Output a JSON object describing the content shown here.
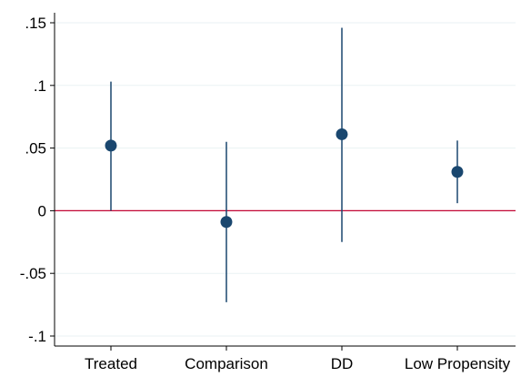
{
  "chart_data": {
    "type": "scatter",
    "subtype": "coefficient-plot-with-confidence-intervals",
    "title": "",
    "xlabel": "",
    "ylabel": "",
    "categories": [
      "Treated",
      "Comparison",
      "DD",
      "Low Propensity"
    ],
    "estimates": [
      0.052,
      -0.009,
      0.061,
      0.031
    ],
    "ci_low": [
      0.0,
      -0.073,
      -0.025,
      0.006
    ],
    "ci_high": [
      0.103,
      0.055,
      0.146,
      0.056
    ],
    "ylim": [
      -0.108,
      0.158
    ],
    "yticks": [
      0.15,
      0.1,
      0.05,
      0,
      -0.05,
      -0.1
    ],
    "ytick_labels": [
      ".15",
      ".1",
      ".05",
      "0",
      "-.05",
      "-.1"
    ],
    "reference_line": 0,
    "grid": "horizontal",
    "legend": "none",
    "colors": {
      "marker": "#1a476f",
      "ci_line": "#1a476f",
      "reference_line": "#c10534",
      "gridline": "#eaf2f3",
      "axis": "#000000"
    }
  }
}
